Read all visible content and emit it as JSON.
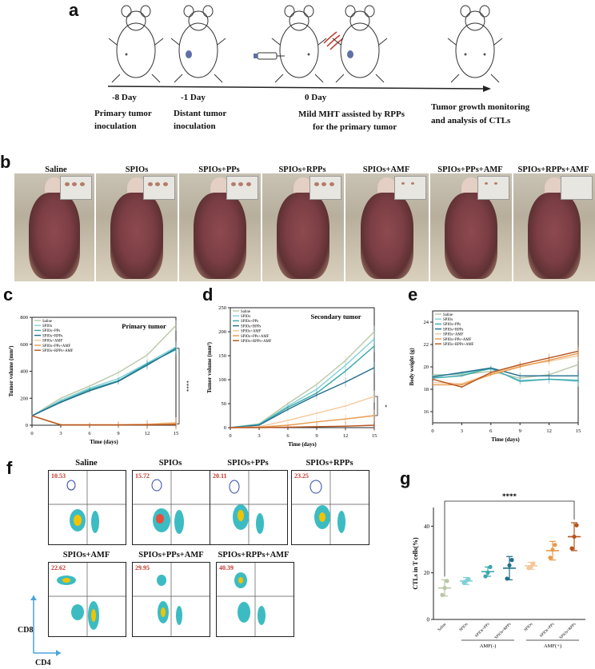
{
  "panels": {
    "a": "a",
    "b": "b",
    "c": "c",
    "d": "d",
    "e": "e",
    "f": "f",
    "g": "g"
  },
  "timeline": [
    {
      "day": "-8 Day",
      "desc1": "Primary tumor",
      "desc2": "inoculation"
    },
    {
      "day": "-1 Day",
      "desc1": "Distant tumor",
      "desc2": "inoculation"
    },
    {
      "day": "0 Day",
      "desc1": "Mild MHT assisted by RPPs",
      "desc2": "for the primary tumor"
    },
    {
      "day": "",
      "desc1": "Tumor growth monitoring",
      "desc2": "and analysis of CTLs"
    }
  ],
  "conditions": [
    "Saline",
    "SPIOs",
    "SPIOs+PPs",
    "SPIOs+RPPs",
    "SPIOs+AMF",
    "SPIOs+PPs+AMF",
    "SPIOs+RPPs+AMF"
  ],
  "colors": {
    "Saline": "#b9c7a4",
    "SPIOs": "#7fd0d8",
    "SPIOs+PPs": "#3aa7a8",
    "SPIOs+RPPs": "#1f6e8c",
    "SPIOs+AMF": "#f2c79a",
    "SPIOs+PPs+AMF": "#e89a4a",
    "SPIOs+RPPs+AMF": "#b5531c",
    "red": "#c0392b"
  },
  "flow": {
    "axis_x": "CD4",
    "axis_y": "CD8",
    "plots": [
      {
        "name": "Saline",
        "value": "10.53"
      },
      {
        "name": "SPIOs",
        "value": "15.72"
      },
      {
        "name": "SPIOs+PPs",
        "value": "20.11"
      },
      {
        "name": "SPIOs+RPPs",
        "value": "23.25"
      },
      {
        "name": "SPIOs+AMF",
        "value": "22.62"
      },
      {
        "name": "SPIOs+PPs+AMF",
        "value": "29.95"
      },
      {
        "name": "SPIOs+RPPs+AMF",
        "value": "40.39"
      }
    ]
  },
  "chart_data": [
    {
      "id": "c",
      "type": "line",
      "title": "Primary tumor",
      "xlabel": "Time (days)",
      "ylabel": "Tumor volume (mm³)",
      "x": [
        0,
        3,
        6,
        9,
        12,
        15
      ],
      "xlim": [
        0,
        15
      ],
      "ylim": [
        0,
        800
      ],
      "xticks": [
        "0",
        "3",
        "6",
        "9",
        "12",
        "15"
      ],
      "yticks": [
        "0",
        "200",
        "400",
        "600",
        "800"
      ],
      "series": [
        {
          "name": "Saline",
          "values": [
            70,
            200,
            290,
            390,
            520,
            740
          ]
        },
        {
          "name": "SPIOs",
          "values": [
            70,
            185,
            275,
            345,
            460,
            580
          ]
        },
        {
          "name": "SPIOs+PPs",
          "values": [
            70,
            175,
            265,
            330,
            455,
            560
          ]
        },
        {
          "name": "SPIOs+RPPs",
          "values": [
            70,
            170,
            255,
            325,
            445,
            570
          ]
        },
        {
          "name": "SPIOs+AMF",
          "values": [
            70,
            5,
            5,
            5,
            8,
            20
          ]
        },
        {
          "name": "SPIOs+PPs+AMF",
          "values": [
            70,
            3,
            3,
            3,
            5,
            12
          ]
        },
        {
          "name": "SPIOs+RPPs+AMF",
          "values": [
            70,
            2,
            2,
            2,
            3,
            5
          ]
        }
      ],
      "annotation": "****"
    },
    {
      "id": "d",
      "type": "line",
      "title": "Secondary tumor",
      "xlabel": "Time (days)",
      "ylabel": "Tumor volume (mm³)",
      "x": [
        0,
        3,
        6,
        9,
        12,
        15
      ],
      "xlim": [
        0,
        15
      ],
      "ylim": [
        0,
        250
      ],
      "xticks": [
        "0",
        "3",
        "6",
        "9",
        "12",
        "15"
      ],
      "yticks": [
        "0",
        "50",
        "100",
        "150",
        "200",
        "250"
      ],
      "series": [
        {
          "name": "Saline",
          "values": [
            0,
            8,
            50,
            90,
            140,
            200
          ]
        },
        {
          "name": "SPIOs",
          "values": [
            0,
            7,
            45,
            80,
            130,
            185
          ]
        },
        {
          "name": "SPIOs+PPs",
          "values": [
            0,
            6,
            42,
            72,
            118,
            170
          ]
        },
        {
          "name": "SPIOs+RPPs",
          "values": [
            0,
            5,
            38,
            68,
            95,
            125
          ]
        },
        {
          "name": "SPIOs+AMF",
          "values": [
            0,
            2,
            15,
            30,
            45,
            65
          ]
        },
        {
          "name": "SPIOs+PPs+AMF",
          "values": [
            0,
            1,
            5,
            12,
            18,
            25
          ]
        },
        {
          "name": "SPIOs+RPPs+AMF",
          "values": [
            0,
            0,
            1,
            2,
            3,
            5
          ]
        }
      ],
      "annotation": "*"
    },
    {
      "id": "e",
      "type": "line",
      "title": "",
      "xlabel": "Time (days)",
      "ylabel": "Body weight (g)",
      "x": [
        0,
        3,
        6,
        9,
        12,
        15
      ],
      "xlim": [
        0,
        15
      ],
      "ylim": [
        15,
        25
      ],
      "xticks": [
        "0",
        "3",
        "6",
        "9",
        "12",
        "15"
      ],
      "yticks": [
        "16",
        "18",
        "20",
        "22",
        "24"
      ],
      "series": [
        {
          "name": "Saline",
          "values": [
            19.3,
            19.3,
            19.6,
            19.0,
            19.3,
            20.2
          ]
        },
        {
          "name": "SPIOs",
          "values": [
            19.2,
            19.4,
            19.8,
            18.8,
            18.9,
            18.7
          ]
        },
        {
          "name": "SPIOs+PPs",
          "values": [
            19.0,
            19.2,
            19.9,
            18.7,
            18.9,
            18.8
          ]
        },
        {
          "name": "SPIOs+RPPs",
          "values": [
            19.1,
            19.5,
            19.9,
            19.2,
            19.2,
            19.2
          ]
        },
        {
          "name": "SPIOs+AMF",
          "values": [
            18.6,
            18.5,
            19.4,
            20.1,
            20.5,
            21.0
          ]
        },
        {
          "name": "SPIOs+PPs+AMF",
          "values": [
            18.4,
            18.4,
            19.3,
            20.0,
            20.6,
            21.2
          ]
        },
        {
          "name": "SPIOs+RPPs+AMF",
          "values": [
            18.9,
            18.2,
            19.5,
            20.2,
            20.8,
            21.4
          ]
        }
      ]
    },
    {
      "id": "g",
      "type": "scatter",
      "title": "",
      "xlabel": "",
      "ylabel": "CTLs in T cells(%)",
      "categories": [
        "Saline",
        "SPIOs",
        "SPIOs+PPs",
        "SPIOs+RPPs",
        "SPIOs",
        "SPIOs+PPs",
        "SPIOs+RPPs"
      ],
      "groups": [
        {
          "label": "AMF(-)",
          "from": 1,
          "to": 3
        },
        {
          "label": "AMF(+)",
          "from": 4,
          "to": 6
        }
      ],
      "ylim": [
        0,
        48
      ],
      "yticks": [
        "0",
        "20",
        "40"
      ],
      "means": [
        13.5,
        16.5,
        20.5,
        22.0,
        23.0,
        29.5,
        35.5
      ],
      "sd": [
        3.5,
        1.5,
        2.0,
        5.0,
        1.5,
        4.0,
        6.0
      ],
      "points": [
        [
          10.5,
          13.5,
          16.5
        ],
        [
          15.7,
          16.5,
          17.3
        ],
        [
          18.5,
          20.1,
          22.5
        ],
        [
          17.5,
          23.2,
          25.5
        ],
        [
          22.0,
          22.6,
          24.0
        ],
        [
          26.5,
          29.9,
          32.0
        ],
        [
          30.5,
          35.5,
          40.4
        ]
      ],
      "point_colors": [
        "#b9c7a4",
        "#7fd0d8",
        "#3aa7a8",
        "#1f6e8c",
        "#f2c79a",
        "#e89a4a",
        "#b5531c"
      ],
      "annotation": "****"
    }
  ]
}
